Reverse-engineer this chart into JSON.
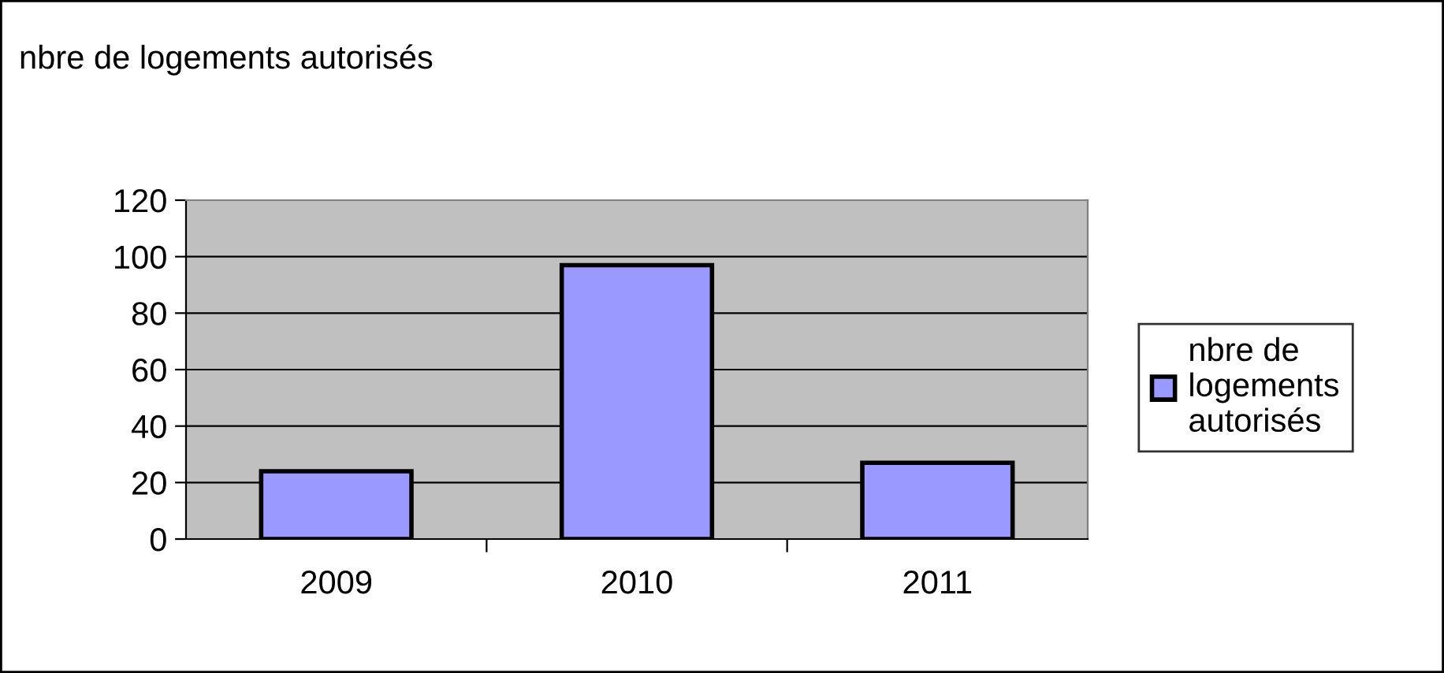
{
  "chart_data": {
    "type": "bar",
    "title": "nbre de logements autorisés",
    "categories": [
      "2009",
      "2010",
      "2011"
    ],
    "series": [
      {
        "name": "nbre de\nlogements\nautorisés",
        "color": "#9999ff",
        "values": [
          24,
          97,
          27
        ]
      }
    ],
    "ylim": [
      0,
      120
    ],
    "yticks": [
      0,
      20,
      40,
      60,
      80,
      100,
      120
    ],
    "grid": "y",
    "legend": "right"
  }
}
